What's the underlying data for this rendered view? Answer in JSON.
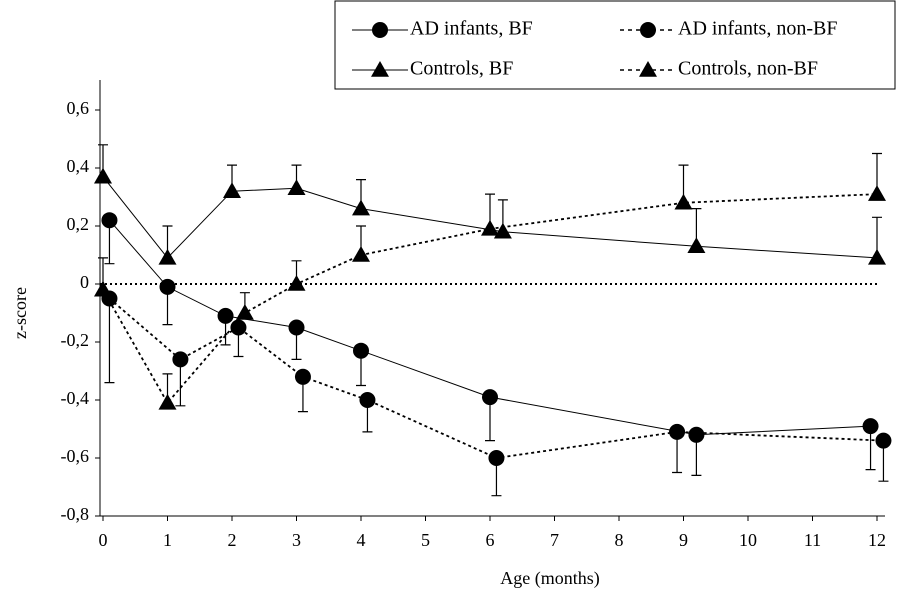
{
  "chart_data": {
    "type": "line",
    "xlabel": "Age (months)",
    "ylabel": "z-score",
    "xlim": [
      0,
      12
    ],
    "xticks": [
      0,
      1,
      2,
      3,
      4,
      5,
      6,
      7,
      8,
      9,
      10,
      11,
      12
    ],
    "ylim": [
      -0.8,
      0.6
    ],
    "yticks": [
      {
        "value": -0.8,
        "label": "-0,8"
      },
      {
        "value": -0.6,
        "label": "-0,6"
      },
      {
        "value": -0.4,
        "label": "-0,4"
      },
      {
        "value": -0.2,
        "label": "-0,2"
      },
      0,
      {
        "value": 0.2,
        "label": "0,2"
      },
      {
        "value": 0.4,
        "label": "0,4"
      },
      {
        "value": 0.6,
        "label": "0,6"
      }
    ],
    "hline": 0,
    "legend": "top-right",
    "series": [
      {
        "name": "AD infants, BF",
        "color": "#000000",
        "dash": false,
        "marker": "circle",
        "error_side": "lower",
        "x": [
          0.1,
          1,
          1.9,
          3,
          4,
          6,
          9.2,
          11.9
        ],
        "values": [
          0.22,
          -0.01,
          -0.11,
          -0.15,
          -0.23,
          -0.39,
          -0.52,
          -0.49
        ],
        "errors": [
          0.15,
          0.13,
          0.1,
          0.11,
          0.12,
          0.15,
          0.14,
          0.15
        ]
      },
      {
        "name": "AD infants, non-BF",
        "color": "#000000",
        "dash": true,
        "marker": "circle",
        "error_side": "lower",
        "x": [
          0.1,
          1.2,
          2.1,
          3.1,
          4.1,
          6.1,
          8.9,
          12.1
        ],
        "values": [
          -0.05,
          -0.26,
          -0.15,
          -0.32,
          -0.4,
          -0.6,
          -0.51,
          -0.54
        ],
        "errors": [
          0.29,
          0.16,
          0.1,
          0.12,
          0.11,
          0.13,
          0.14,
          0.14
        ]
      },
      {
        "name": "Controls, BF",
        "color": "#000000",
        "dash": false,
        "marker": "triangle",
        "error_side": "upper",
        "x": [
          0,
          1,
          2,
          3,
          4,
          6.2,
          9.2,
          12
        ],
        "values": [
          0.37,
          0.09,
          0.32,
          0.33,
          0.26,
          0.18,
          0.13,
          0.09
        ],
        "errors": [
          0.11,
          0.11,
          0.09,
          0.08,
          0.1,
          0.11,
          0.13,
          0.14
        ]
      },
      {
        "name": "Controls, non-BF",
        "color": "#000000",
        "dash": true,
        "marker": "triangle",
        "error_side": "upper",
        "x": [
          0,
          1,
          2.2,
          3,
          4,
          6,
          9,
          12
        ],
        "values": [
          -0.02,
          -0.41,
          -0.1,
          0,
          0.1,
          0.19,
          0.28,
          0.31
        ],
        "errors": [
          0.11,
          0.1,
          0.07,
          0.08,
          0.1,
          0.12,
          0.13,
          0.14
        ]
      }
    ]
  }
}
